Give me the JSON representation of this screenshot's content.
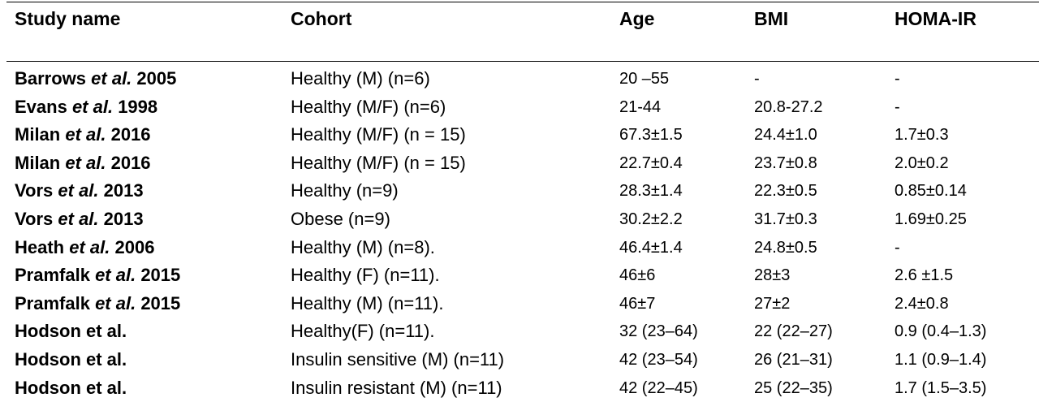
{
  "table": {
    "headers": {
      "study": "Study name",
      "cohort": "Cohort",
      "age": "Age",
      "bmi": "BMI",
      "homa": "HOMA-IR"
    },
    "rows": [
      {
        "author": "Barrows ",
        "etal": "et al.",
        "year": " 2005",
        "cohort": "Healthy (M) (n=6)",
        "age": "20 –55",
        "bmi": "-",
        "homa": "-"
      },
      {
        "author": "Evans ",
        "etal": "et al.",
        "year": " 1998",
        "cohort": "Healthy (M/F) (n=6)",
        "age": "21-44",
        "bmi": "20.8-27.2",
        "homa": "-"
      },
      {
        "author": "Milan ",
        "etal": "et al.",
        "year": " 2016",
        "cohort": "Healthy (M/F) (n = 15)",
        "age": "67.3±1.5",
        "bmi": "24.4±1.0",
        "homa": "1.7±0.3"
      },
      {
        "author": "Milan ",
        "etal": "et al.",
        "year": " 2016",
        "cohort": "Healthy (M/F) (n = 15)",
        "age": "22.7±0.4",
        "bmi": "23.7±0.8",
        "homa": "2.0±0.2"
      },
      {
        "author": "Vors ",
        "etal": "et al.",
        "year": " 2013",
        "cohort": "Healthy (n=9)",
        "age": "28.3±1.4",
        "bmi": "22.3±0.5",
        "homa": "0.85±0.14"
      },
      {
        "author": "Vors ",
        "etal": "et al.",
        "year": " 2013",
        "cohort": "Obese (n=9)",
        "age": "30.2±2.2",
        "bmi": "31.7±0.3",
        "homa": "1.69±0.25"
      },
      {
        "author": "Heath ",
        "etal": "et al.",
        "year": " 2006",
        "cohort": "Healthy (M) (n=8).",
        "age": "46.4±1.4",
        "bmi": "24.8±0.5",
        "homa": "-"
      },
      {
        "author": "Pramfalk ",
        "etal": "et al.",
        "year": " 2015",
        "cohort": "Healthy (F) (n=11).",
        "age": "46±6",
        "bmi": "28±3",
        "homa": "2.6 ±1.5"
      },
      {
        "author": "Pramfalk ",
        "etal": "et al.",
        "year": " 2015",
        "cohort": "Healthy (M) (n=11).",
        "age": "46±7",
        "bmi": "27±2",
        "homa": "2.4±0.8"
      },
      {
        "author": "Hodson et al.",
        "etal": "",
        "year": "",
        "cohort": "Healthy(F) (n=11).",
        "age": "32 (23–64)",
        "bmi": "22 (22–27)",
        "homa": "0.9 (0.4–1.3)"
      },
      {
        "author": "Hodson et al.",
        "etal": "",
        "year": "",
        "cohort": "Insulin sensitive (M) (n=11)",
        "age": "42 (23–54)",
        "bmi": "26 (21–31)",
        "homa": "1.1 (0.9–1.4)"
      },
      {
        "author": "Hodson et al.",
        "etal": "",
        "year": "",
        "cohort": "Insulin resistant (M) (n=11)",
        "age": "42 (22–45)",
        "bmi": "25 (22–35)",
        "homa": "1.7 (1.5–3.5)"
      }
    ]
  }
}
